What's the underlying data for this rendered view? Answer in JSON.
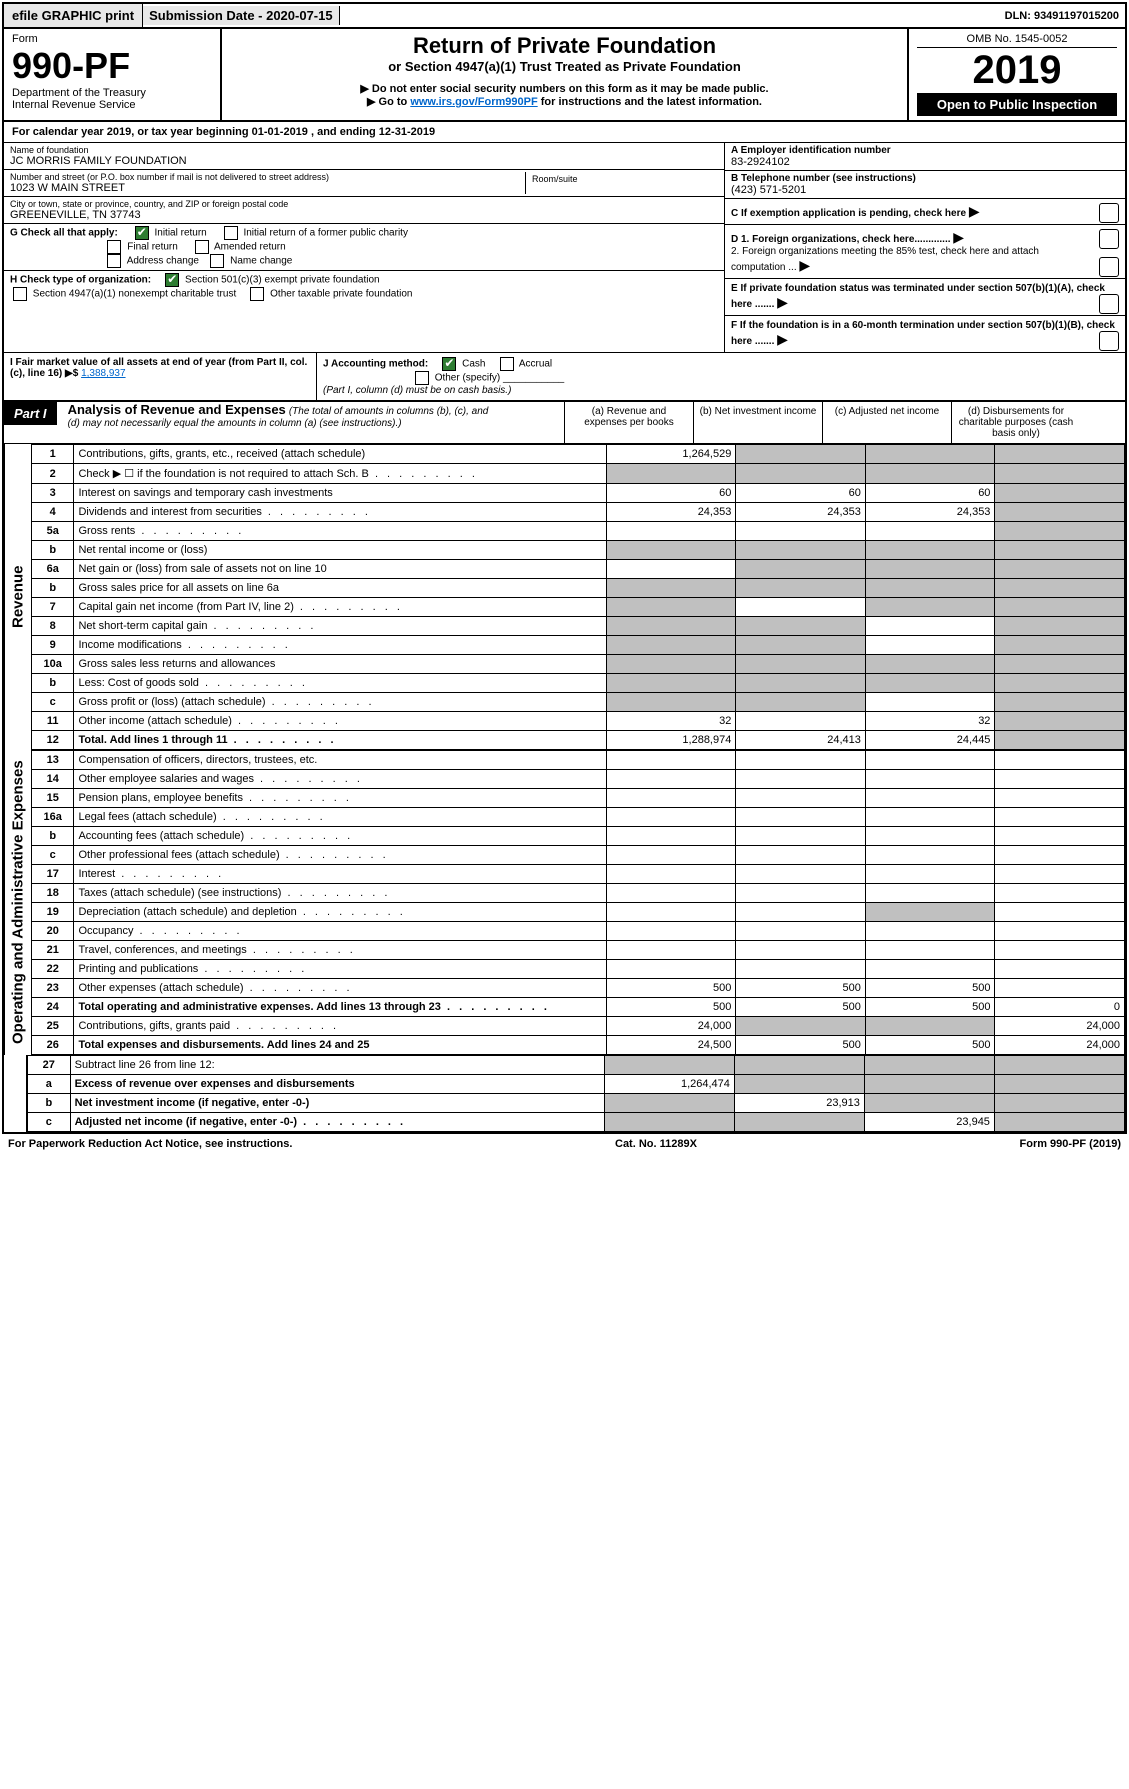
{
  "topbar": {
    "efile": "efile GRAPHIC print",
    "submission_label": "Submission Date - 2020-07-15",
    "dln": "DLN: 93491197015200"
  },
  "header": {
    "form_label": "Form",
    "form_number": "990-PF",
    "dept": "Department of the Treasury",
    "irs": "Internal Revenue Service",
    "title": "Return of Private Foundation",
    "subtitle": "or Section 4947(a)(1) Trust Treated as Private Foundation",
    "warn1": "▶ Do not enter social security numbers on this form as it may be made public.",
    "warn2_pre": "▶ Go to ",
    "warn2_link": "www.irs.gov/Form990PF",
    "warn2_post": " for instructions and the latest information.",
    "omb": "OMB No. 1545-0052",
    "year": "2019",
    "open": "Open to Public Inspection"
  },
  "cal_year": "For calendar year 2019, or tax year beginning 01-01-2019                           , and ending 12-31-2019",
  "foundation": {
    "name_label": "Name of foundation",
    "name": "JC MORRIS FAMILY FOUNDATION",
    "addr_label": "Number and street (or P.O. box number if mail is not delivered to street address)",
    "addr": "1023 W MAIN STREET",
    "room_label": "Room/suite",
    "city_label": "City or town, state or province, country, and ZIP or foreign postal code",
    "city": "GREENEVILLE, TN  37743",
    "ein_label": "A Employer identification number",
    "ein": "83-2924102",
    "phone_label": "B Telephone number (see instructions)",
    "phone": "(423) 571-5201",
    "c_label": "C If exemption application is pending, check here",
    "d1_label": "D 1. Foreign organizations, check here.............",
    "d2_label": "2. Foreign organizations meeting the 85% test, check here and attach computation ...",
    "e_label": "E If private foundation status was terminated under section 507(b)(1)(A), check here .......",
    "f_label": "F If the foundation is in a 60-month termination under section 507(b)(1)(B), check here .......",
    "g_label": "G Check all that apply:",
    "g_opts": {
      "initial": "Initial return",
      "initial_former": "Initial return of a former public charity",
      "final": "Final return",
      "amended": "Amended return",
      "addr_change": "Address change",
      "name_change": "Name change"
    },
    "h_label": "H Check type of organization:",
    "h_opts": {
      "501c3": "Section 501(c)(3) exempt private foundation",
      "4947": "Section 4947(a)(1) nonexempt charitable trust",
      "other_tax": "Other taxable private foundation"
    },
    "i_label": "I Fair market value of all assets at end of year (from Part II, col. (c), line 16) ▶$",
    "i_value": "1,388,937",
    "j_label": "J Accounting method:",
    "j_cash": "Cash",
    "j_accrual": "Accrual",
    "j_other": "Other (specify)",
    "j_note": "(Part I, column (d) must be on cash basis.)"
  },
  "part1": {
    "label": "Part I",
    "title": "Analysis of Revenue and Expenses",
    "title_note": "(The total of amounts in columns (b), (c), and (d) may not necessarily equal the amounts in column (a) (see instructions).)",
    "cols": {
      "a": "(a)   Revenue and expenses per books",
      "b": "(b)   Net investment income",
      "c": "(c)   Adjusted net income",
      "d": "(d)   Disbursements for charitable purposes (cash basis only)"
    }
  },
  "revenue_label": "Revenue",
  "expenses_label": "Operating and Administrative Expenses",
  "rows": [
    {
      "n": "1",
      "d": "Contributions, gifts, grants, etc., received (attach schedule)",
      "a": "1,264,529",
      "b_grey": true,
      "c_grey": true,
      "d_grey": true
    },
    {
      "n": "2",
      "d": "Check ▶ ☐ if the foundation is not required to attach Sch. B",
      "a_grey": true,
      "b_grey": true,
      "c_grey": true,
      "d_grey": true,
      "dots": true
    },
    {
      "n": "3",
      "d": "Interest on savings and temporary cash investments",
      "a": "60",
      "b": "60",
      "c": "60",
      "d_grey": true
    },
    {
      "n": "4",
      "d": "Dividends and interest from securities",
      "a": "24,353",
      "b": "24,353",
      "c": "24,353",
      "d_grey": true,
      "dots": true
    },
    {
      "n": "5a",
      "d": "Gross rents",
      "d_grey": true,
      "dots": true
    },
    {
      "n": "b",
      "d": "Net rental income or (loss)",
      "a_grey": true,
      "b_grey": true,
      "c_grey": true,
      "d_grey": true
    },
    {
      "n": "6a",
      "d": "Net gain or (loss) from sale of assets not on line 10",
      "b_grey": true,
      "c_grey": true,
      "d_grey": true
    },
    {
      "n": "b",
      "d": "Gross sales price for all assets on line 6a",
      "a_grey": true,
      "b_grey": true,
      "c_grey": true,
      "d_grey": true
    },
    {
      "n": "7",
      "d": "Capital gain net income (from Part IV, line 2)",
      "a_grey": true,
      "c_grey": true,
      "d_grey": true,
      "dots": true
    },
    {
      "n": "8",
      "d": "Net short-term capital gain",
      "a_grey": true,
      "b_grey": true,
      "d_grey": true,
      "dots": true
    },
    {
      "n": "9",
      "d": "Income modifications",
      "a_grey": true,
      "b_grey": true,
      "d_grey": true,
      "dots": true
    },
    {
      "n": "10a",
      "d": "Gross sales less returns and allowances",
      "a_grey": true,
      "b_grey": true,
      "c_grey": true,
      "d_grey": true
    },
    {
      "n": "b",
      "d": "Less: Cost of goods sold",
      "a_grey": true,
      "b_grey": true,
      "c_grey": true,
      "d_grey": true,
      "dots": true
    },
    {
      "n": "c",
      "d": "Gross profit or (loss) (attach schedule)",
      "a_grey": true,
      "b_grey": true,
      "d_grey": true,
      "dots": true
    },
    {
      "n": "11",
      "d": "Other income (attach schedule)",
      "a": "32",
      "c": "32",
      "d_grey": true,
      "dots": true
    },
    {
      "n": "12",
      "d": "Total. Add lines 1 through 11",
      "bold": true,
      "a": "1,288,974",
      "b": "24,413",
      "c": "24,445",
      "d_grey": true,
      "dots": true
    }
  ],
  "exp_rows": [
    {
      "n": "13",
      "d": "Compensation of officers, directors, trustees, etc."
    },
    {
      "n": "14",
      "d": "Other employee salaries and wages",
      "dots": true
    },
    {
      "n": "15",
      "d": "Pension plans, employee benefits",
      "dots": true
    },
    {
      "n": "16a",
      "d": "Legal fees (attach schedule)",
      "dots": true
    },
    {
      "n": "b",
      "d": "Accounting fees (attach schedule)",
      "dots": true
    },
    {
      "n": "c",
      "d": "Other professional fees (attach schedule)",
      "dots": true
    },
    {
      "n": "17",
      "d": "Interest",
      "dots": true
    },
    {
      "n": "18",
      "d": "Taxes (attach schedule) (see instructions)",
      "dots": true
    },
    {
      "n": "19",
      "d": "Depreciation (attach schedule) and depletion",
      "c_grey": true,
      "dots": true
    },
    {
      "n": "20",
      "d": "Occupancy",
      "dots": true
    },
    {
      "n": "21",
      "d": "Travel, conferences, and meetings",
      "dots": true
    },
    {
      "n": "22",
      "d": "Printing and publications",
      "dots": true
    },
    {
      "n": "23",
      "d": "Other expenses (attach schedule)",
      "a": "500",
      "b": "500",
      "c": "500",
      "dots": true
    },
    {
      "n": "24",
      "d": "Total operating and administrative expenses. Add lines 13 through 23",
      "bold": true,
      "a": "500",
      "b": "500",
      "c": "500",
      "dval": "0",
      "dots": true
    },
    {
      "n": "25",
      "d": "Contributions, gifts, grants paid",
      "a": "24,000",
      "b_grey": true,
      "c_grey": true,
      "dval": "24,000",
      "dots": true
    },
    {
      "n": "26",
      "d": "Total expenses and disbursements. Add lines 24 and 25",
      "bold": true,
      "a": "24,500",
      "b": "500",
      "c": "500",
      "dval": "24,000"
    }
  ],
  "final_rows": [
    {
      "n": "27",
      "d": "Subtract line 26 from line 12:",
      "a_grey": true,
      "b_grey": true,
      "c_grey": true,
      "d_grey": true
    },
    {
      "n": "a",
      "d": "Excess of revenue over expenses and disbursements",
      "bold": true,
      "a": "1,264,474",
      "b_grey": true,
      "c_grey": true,
      "d_grey": true
    },
    {
      "n": "b",
      "d": "Net investment income (if negative, enter -0-)",
      "bold": true,
      "a_grey": true,
      "b": "23,913",
      "c_grey": true,
      "d_grey": true
    },
    {
      "n": "c",
      "d": "Adjusted net income (if negative, enter -0-)",
      "bold": true,
      "a_grey": true,
      "b_grey": true,
      "c": "23,945",
      "d_grey": true,
      "dots": true
    }
  ],
  "footer": {
    "left": "For Paperwork Reduction Act Notice, see instructions.",
    "center": "Cat. No. 11289X",
    "right": "Form 990-PF (2019)"
  }
}
